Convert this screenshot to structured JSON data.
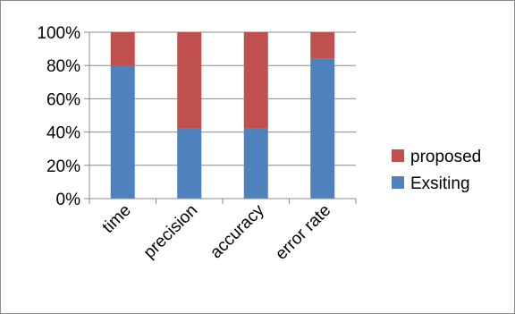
{
  "chart_data": {
    "type": "bar",
    "stacked": true,
    "percent_stacked": true,
    "categories": [
      "time",
      "precision",
      "accuracy",
      "error rate"
    ],
    "series": [
      {
        "name": "Exsiting",
        "values": [
          80,
          42,
          42,
          84
        ],
        "color": "#4f81bd"
      },
      {
        "name": "proposed",
        "values": [
          20,
          58,
          58,
          16
        ],
        "color": "#c0504d"
      }
    ],
    "yticks": [
      "0%",
      "20%",
      "40%",
      "60%",
      "80%",
      "100%"
    ],
    "ylim": [
      0,
      100
    ],
    "grid": true,
    "legend_position": "right",
    "legend_order": [
      "proposed",
      "Exsiting"
    ]
  }
}
